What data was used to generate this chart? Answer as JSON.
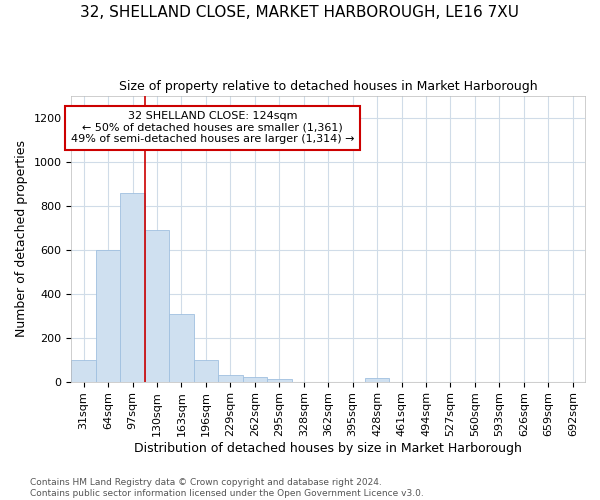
{
  "title": "32, SHELLAND CLOSE, MARKET HARBOROUGH, LE16 7XU",
  "subtitle": "Size of property relative to detached houses in Market Harborough",
  "xlabel": "Distribution of detached houses by size in Market Harborough",
  "ylabel": "Number of detached properties",
  "bar_color": "#cfe0f0",
  "bar_edge_color": "#a0c0e0",
  "categories": [
    "31sqm",
    "64sqm",
    "97sqm",
    "130sqm",
    "163sqm",
    "196sqm",
    "229sqm",
    "262sqm",
    "295sqm",
    "328sqm",
    "362sqm",
    "395sqm",
    "428sqm",
    "461sqm",
    "494sqm",
    "527sqm",
    "560sqm",
    "593sqm",
    "626sqm",
    "659sqm",
    "692sqm"
  ],
  "values": [
    100,
    600,
    855,
    690,
    305,
    100,
    30,
    20,
    10,
    0,
    0,
    0,
    15,
    0,
    0,
    0,
    0,
    0,
    0,
    0,
    0
  ],
  "ylim": [
    0,
    1300
  ],
  "yticks": [
    0,
    200,
    400,
    600,
    800,
    1000,
    1200
  ],
  "red_line_x": 2.5,
  "annotation_text": "32 SHELLAND CLOSE: 124sqm\n← 50% of detached houses are smaller (1,361)\n49% of semi-detached houses are larger (1,314) →",
  "annotation_box_color": "#ffffff",
  "annotation_box_edge": "#cc0000",
  "footer": "Contains HM Land Registry data © Crown copyright and database right 2024.\nContains public sector information licensed under the Open Government Licence v3.0.",
  "background_color": "#ffffff",
  "plot_background": "#ffffff",
  "grid_color": "#d0dce8",
  "title_fontsize": 11,
  "subtitle_fontsize": 9,
  "xlabel_fontsize": 9,
  "ylabel_fontsize": 9,
  "tick_fontsize": 8,
  "footer_fontsize": 6.5,
  "annotation_fontsize": 8
}
